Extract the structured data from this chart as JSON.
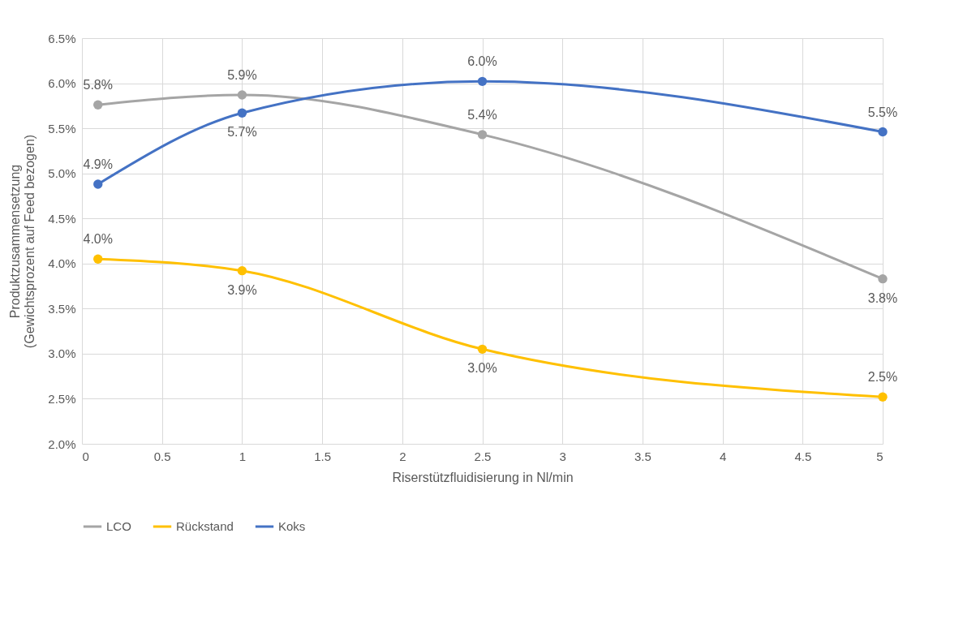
{
  "chart_data": {
    "type": "line",
    "xlabel": "Riserstützfluidisierung in Nl/min",
    "ylabel": "Produktzusammensetzung (Gewichtsprozent auf Feed bezogen)",
    "x": [
      0.1,
      1,
      2.5,
      5
    ],
    "series": [
      {
        "name": "LCO",
        "color": "#a5a5a5",
        "values": [
          5.76,
          5.87,
          5.43,
          3.83
        ],
        "value_labels": [
          "5.8%",
          "5.9%",
          "5.4%",
          "3.8%"
        ]
      },
      {
        "name": "Rückstand",
        "color": "#ffc000",
        "values": [
          4.05,
          3.92,
          3.05,
          2.52
        ],
        "value_labels": [
          "4.0%",
          "3.9%",
          "3.0%",
          "2.5%"
        ]
      },
      {
        "name": "Koks",
        "color": "#4472c4",
        "values": [
          4.88,
          5.67,
          6.02,
          5.46
        ],
        "value_labels": [
          "4.9%",
          "5.7%",
          "6.0%",
          "5.5%"
        ]
      }
    ],
    "xlim": [
      0,
      5
    ],
    "xticks": [
      0,
      0.5,
      1,
      1.5,
      2,
      2.5,
      3,
      3.5,
      4,
      4.5,
      5
    ],
    "ylim": [
      2,
      6.5
    ],
    "yticks": [
      {
        "value": 2,
        "label": "2.0%"
      },
      {
        "value": 2.5,
        "label": "2.5%"
      },
      {
        "value": 3,
        "label": "3.0%"
      },
      {
        "value": 3.5,
        "label": "3.5%"
      },
      {
        "value": 4,
        "label": "4.0%"
      },
      {
        "value": 4.5,
        "label": "4.5%"
      },
      {
        "value": 5,
        "label": "5.0%"
      },
      {
        "value": 5.5,
        "label": "5.5%"
      },
      {
        "value": 6,
        "label": "6.0%"
      },
      {
        "value": 6.5,
        "label": "6.5%"
      }
    ],
    "grid": true,
    "legend": "bottom",
    "marker": "circle",
    "line_style": "solid"
  }
}
